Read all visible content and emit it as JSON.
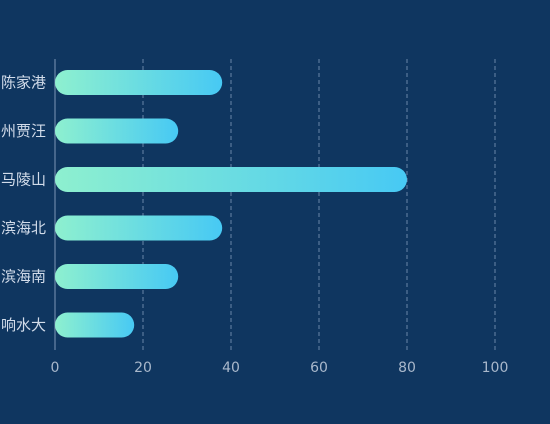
{
  "chart_data": {
    "type": "bar",
    "orientation": "horizontal",
    "categories": [
      "响水大",
      "滨海南",
      "滨海北",
      "马陵山",
      "州贾汪",
      "陈家港"
    ],
    "values": [
      18,
      28,
      38,
      80,
      28,
      38
    ],
    "xlim": [
      0,
      100
    ],
    "xticks": [
      "0",
      "20",
      "40",
      "60",
      "80",
      "100"
    ],
    "grid": true,
    "legend": "none",
    "colors": {
      "background": "#0f3660",
      "bar_start": "#8ef0cf",
      "bar_end": "#47c9f4",
      "grid": "#6a86a8",
      "axis_line": "#7c97b6",
      "label": "#d2dcea",
      "tick_label": "#a9b8cb"
    }
  }
}
